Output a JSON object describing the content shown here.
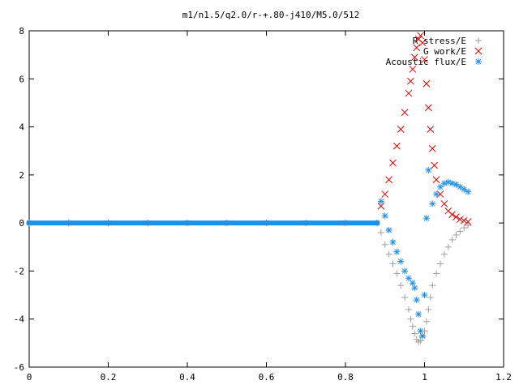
{
  "chart_data": {
    "type": "scatter",
    "title": "m1/n1.5/q2.0/r-+.80-j410/M5.0/512",
    "xlabel": "",
    "ylabel": "",
    "xlim": [
      0,
      1.2
    ],
    "ylim": [
      -6,
      8
    ],
    "xticks": [
      0,
      0.2,
      0.4,
      0.6,
      0.8,
      1,
      1.2
    ],
    "xtick_labels": [
      "0",
      "0.2",
      "0.4",
      "0.6",
      "0.8",
      "1",
      "1.2"
    ],
    "yticks": [
      -6,
      -4,
      -2,
      0,
      2,
      4,
      6,
      8
    ],
    "ytick_labels": [
      "-6",
      "-4",
      "-2",
      "0",
      "2",
      "4",
      "6",
      "8"
    ],
    "grid": false,
    "legend_position": "top-right",
    "series": [
      {
        "name": "R stress/E",
        "marker": "+",
        "color": "#a0a0a0",
        "x": [
          0.89,
          0.9,
          0.91,
          0.92,
          0.93,
          0.94,
          0.95,
          0.96,
          0.965,
          0.97,
          0.975,
          0.98,
          0.985,
          0.99,
          0.995,
          1.0,
          1.005,
          1.01,
          1.015,
          1.02,
          1.03,
          1.04,
          1.05,
          1.06,
          1.07,
          1.08,
          1.09,
          1.1,
          1.11
        ],
        "y": [
          -0.4,
          -0.9,
          -1.3,
          -1.7,
          -2.1,
          -2.6,
          -3.1,
          -3.6,
          -4.0,
          -4.3,
          -4.6,
          -4.85,
          -4.95,
          -4.9,
          -4.75,
          -4.5,
          -4.1,
          -3.6,
          -3.1,
          -2.6,
          -2.1,
          -1.7,
          -1.3,
          -1.0,
          -0.7,
          -0.5,
          -0.35,
          -0.2,
          -0.1
        ]
      },
      {
        "name": "G work/E",
        "marker": "x",
        "color": "#e00000",
        "x": [
          0.89,
          0.9,
          0.91,
          0.92,
          0.93,
          0.94,
          0.95,
          0.96,
          0.965,
          0.97,
          0.975,
          0.98,
          0.985,
          0.99,
          0.995,
          1.0,
          1.005,
          1.01,
          1.015,
          1.02,
          1.025,
          1.03,
          1.04,
          1.05,
          1.06,
          1.07,
          1.08,
          1.09,
          1.1,
          1.11
        ],
        "y": [
          0.7,
          1.2,
          1.8,
          2.5,
          3.2,
          3.9,
          4.6,
          5.4,
          5.9,
          6.4,
          6.9,
          7.3,
          7.65,
          7.8,
          7.5,
          6.8,
          5.8,
          4.8,
          3.9,
          3.1,
          2.4,
          1.8,
          1.2,
          0.8,
          0.5,
          0.35,
          0.25,
          0.15,
          0.1,
          0.05
        ]
      },
      {
        "name": "Acoustic flux/E",
        "marker": "*",
        "color": "#1e90e6",
        "x": [
          0.0,
          0.1,
          0.2,
          0.3,
          0.4,
          0.5,
          0.6,
          0.7,
          0.8,
          0.88,
          0.89,
          0.9,
          0.91,
          0.92,
          0.93,
          0.94,
          0.95,
          0.96,
          0.97,
          0.975,
          0.98,
          0.985,
          0.99,
          0.995,
          1.0,
          1.005,
          1.01,
          1.02,
          1.03,
          1.04,
          1.05,
          1.06,
          1.07,
          1.08,
          1.09,
          1.1,
          1.11
        ],
        "y": [
          0.0,
          0.0,
          0.0,
          0.0,
          0.0,
          0.0,
          0.0,
          0.0,
          0.0,
          0.0,
          0.9,
          0.3,
          -0.3,
          -0.8,
          -1.2,
          -1.6,
          -2.0,
          -2.3,
          -2.5,
          -2.7,
          -3.2,
          -3.8,
          -4.5,
          -4.7,
          -3.0,
          0.2,
          2.2,
          0.8,
          1.2,
          1.5,
          1.65,
          1.7,
          1.65,
          1.6,
          1.5,
          1.4,
          1.3
        ]
      }
    ]
  }
}
